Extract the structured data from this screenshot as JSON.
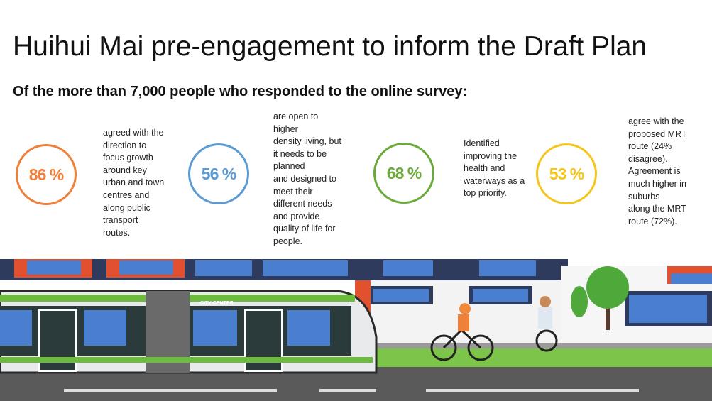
{
  "header": {
    "title": "Huihui Mai pre-engagement to inform the Draft Plan",
    "subtitle": "Of the more than 7,000 people who responded to the online survey:"
  },
  "stats": [
    {
      "value": "86 %",
      "lines": [
        "agreed with the",
        "direction to",
        "focus growth",
        "around key",
        "urban and town",
        "centres and",
        "along public",
        "transport",
        "routes."
      ]
    },
    {
      "value": "56 %",
      "lines": [
        "are open to",
        "higher",
        "density living, but",
        "it needs to be",
        "planned",
        "and designed to",
        "meet their",
        "different needs",
        "and provide",
        "quality of life for",
        "people."
      ]
    },
    {
      "value": "68 %",
      "lines": [
        "Identified",
        "improving the",
        "health and",
        "waterways as a",
        "top priority."
      ]
    },
    {
      "value": "53 %",
      "lines": [
        "agree with the",
        "proposed MRT",
        "route (24%",
        "disagree).",
        "Agreement is",
        "much higher in",
        "suburbs",
        "along the MRT",
        "route (72%)."
      ]
    }
  ],
  "illustration": {
    "tram_sign": "CITY CENTRE"
  }
}
